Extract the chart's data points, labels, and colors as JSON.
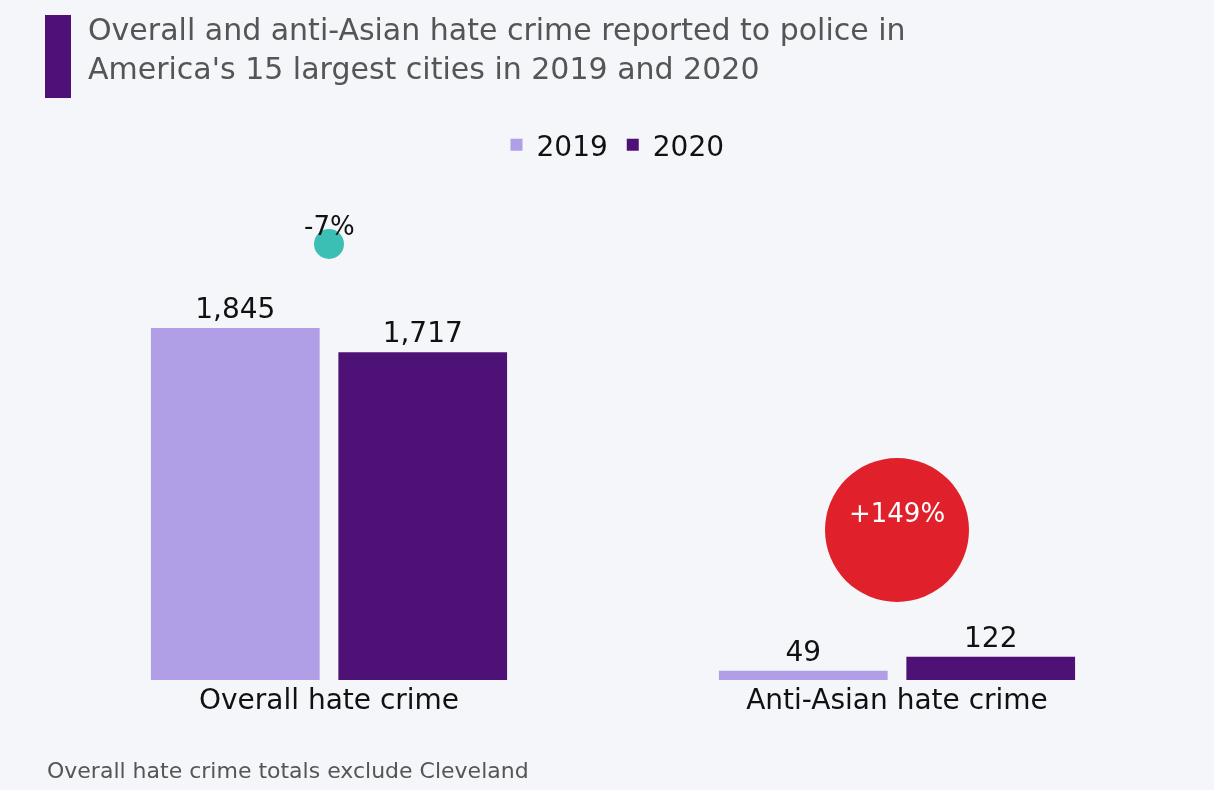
{
  "chart_data": {
    "type": "bar",
    "title": "Overall and anti-Asian hate crime reported to police in\nAmerica's 15 largest cities in 2019 and 2020",
    "categories": [
      "Overall hate crime",
      "Anti-Asian hate crime"
    ],
    "series": [
      {
        "name": "2019",
        "color": "#b09fe6",
        "values": [
          1845,
          49
        ],
        "value_labels": [
          "1,845",
          "49"
        ]
      },
      {
        "name": "2020",
        "color": "#4e1277",
        "values": [
          1717,
          122
        ],
        "value_labels": [
          "1,717",
          "122"
        ]
      }
    ],
    "legend": "top",
    "grid": false,
    "annotations": [
      "-7%",
      "+149%",
      "Overall hate crime totals exclude Cleveland"
    ]
  }
}
